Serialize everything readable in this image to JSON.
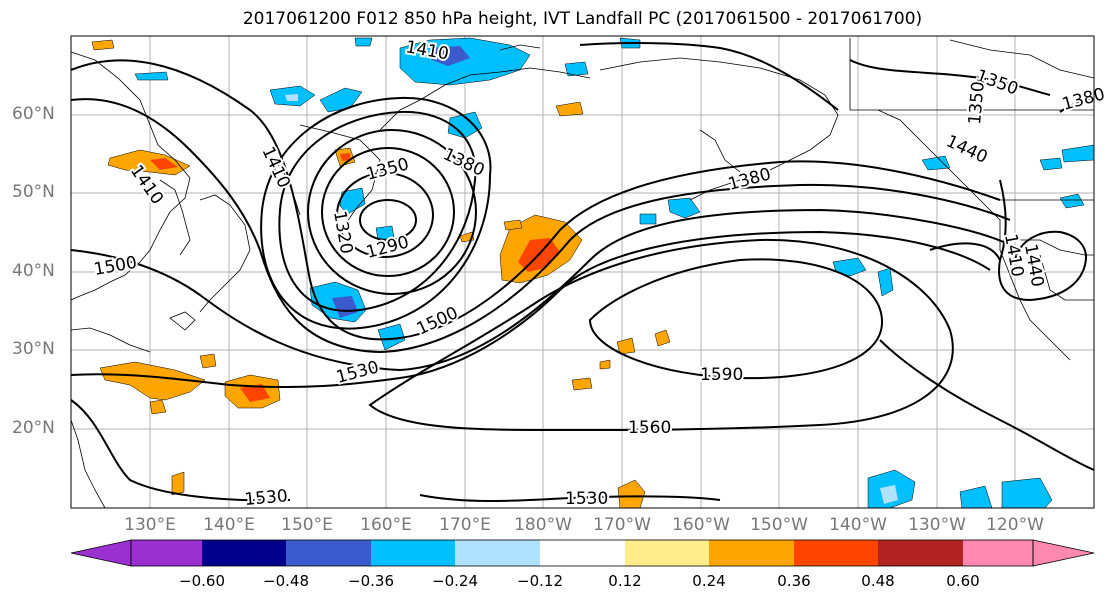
{
  "title": "2017061200 F012 850 hPa height, IVT Landfall PC (2017061500 - 2017061700)",
  "lat_labels": [
    "60°N",
    "50°N",
    "40°N",
    "30°N",
    "20°N"
  ],
  "lon_labels": [
    "130°E",
    "140°E",
    "150°E",
    "160°E",
    "170°E",
    "180°W",
    "170°W",
    "160°W",
    "150°W",
    "140°W",
    "130°W",
    "120°W"
  ],
  "contour_labels": {
    "c1410a": "1410",
    "c1410b": "1410",
    "c1410c": "1410",
    "c1410d": "1410",
    "c1350a": "1350",
    "c1350b": "1350",
    "c1350c": "1350",
    "c1380a": "1380",
    "c1380b": "1380",
    "c1380c": "1380",
    "c1320": "1320",
    "c1290": "1290",
    "c1440a": "1440",
    "c1440b": "1440",
    "c1500a": "1500",
    "c1500b": "1500",
    "c1530a": "1530",
    "c1530b": "1530",
    "c1530c": "1530",
    "c1560": "1560",
    "c1590": "1590"
  },
  "colorbar": {
    "ticks": [
      "−0.60",
      "−0.48",
      "−0.36",
      "−0.24",
      "−0.12",
      "0.12",
      "0.24",
      "0.36",
      "0.48",
      "0.60"
    ],
    "colors": [
      "#9b30d0",
      "#00008b",
      "#3a5acd",
      "#00bfff",
      "#b0e2ff",
      "#ffffff",
      "#ffec8b",
      "#ffa500",
      "#ff4500",
      "#b22222",
      "#ff88b0"
    ]
  },
  "colors": {
    "grid": "#b3b3b3",
    "contour": "#000000",
    "coast": "#000000",
    "axis_label": "#777777"
  }
}
